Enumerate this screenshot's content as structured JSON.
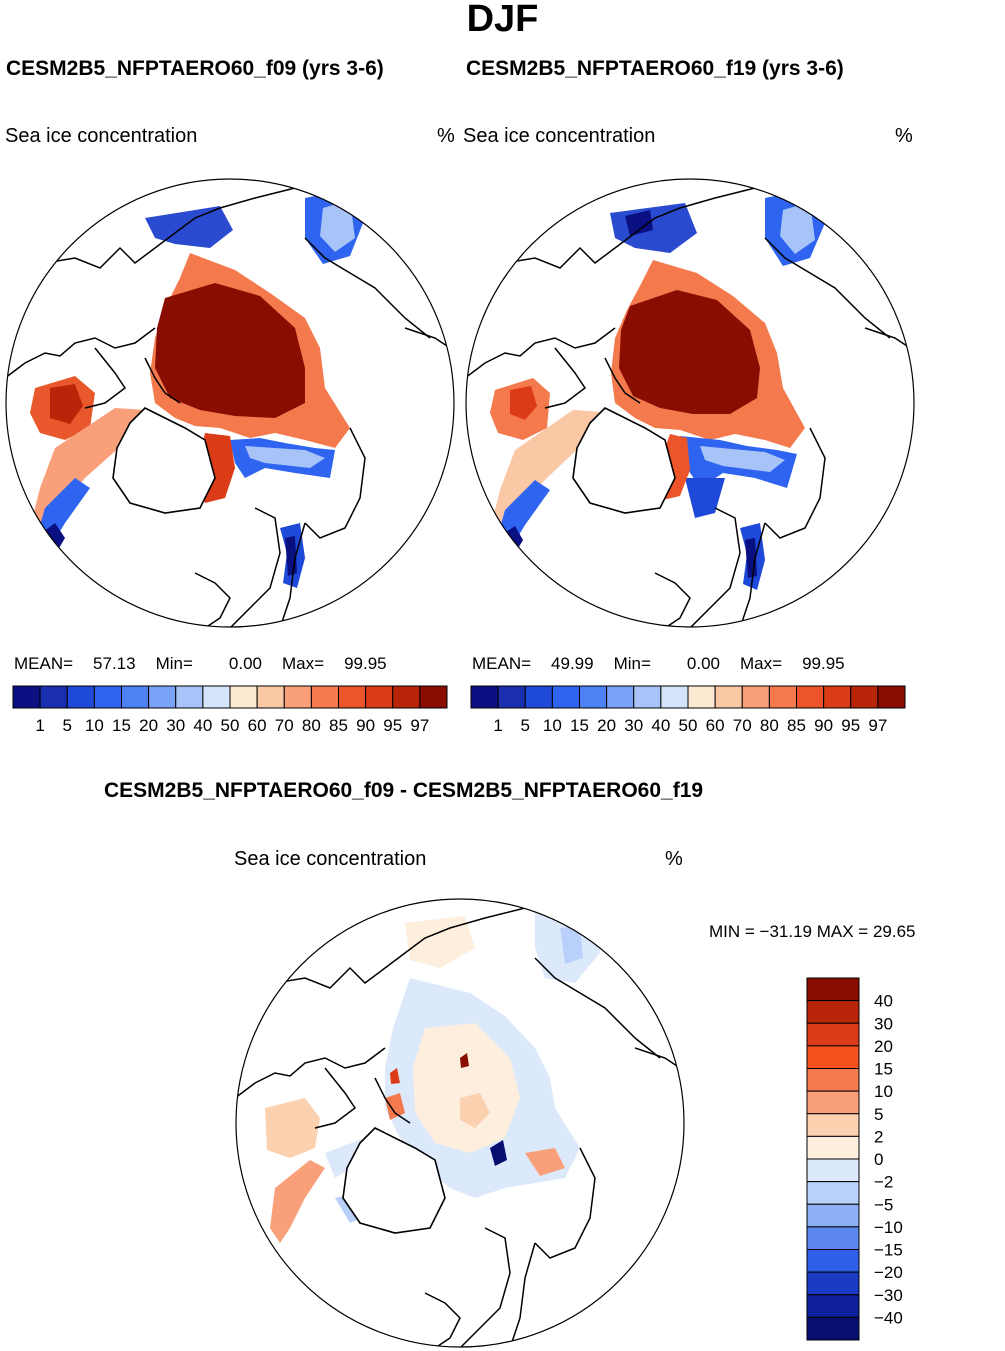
{
  "season": "DJF",
  "panels": [
    {
      "title": "CESM2B5_NFPTAERO60_f09 (yrs 3-6)",
      "variable": "Sea ice concentration",
      "units": "%",
      "stats": {
        "mean_label": "MEAN=",
        "mean": "57.13",
        "min_label": "Min=",
        "min": "0.00",
        "max_label": "Max=",
        "max": "99.95"
      }
    },
    {
      "title": "CESM2B5_NFPTAERO60_f19 (yrs 3-6)",
      "variable": "Sea ice concentration",
      "units": "%",
      "stats": {
        "mean_label": "MEAN=",
        "mean": "49.99",
        "min_label": "Min=",
        "min": "0.00",
        "max_label": "Max=",
        "max": "99.95"
      }
    }
  ],
  "colorbar": {
    "levels": [
      "1",
      "5",
      "10",
      "15",
      "20",
      "30",
      "40",
      "50",
      "60",
      "70",
      "80",
      "85",
      "90",
      "95",
      "97"
    ],
    "colors": [
      "#0a0f82",
      "#1a2fb0",
      "#1f49d8",
      "#2e64f0",
      "#4d82f5",
      "#7aa3f7",
      "#a8c3f8",
      "#d4e4fb",
      "#fde8d2",
      "#fbc8a6",
      "#f9a07a",
      "#f47a4e",
      "#ec5529",
      "#dc3b17",
      "#b82508",
      "#8a0d02"
    ]
  },
  "difference": {
    "title": "CESM2B5_NFPTAERO60_f09 - CESM2B5_NFPTAERO60_f19",
    "variable": "Sea ice concentration",
    "units": "%",
    "minmax": "MIN = −31.19  MAX =   29.65",
    "colorbar": {
      "labels": [
        "40",
        "30",
        "20",
        "15",
        "10",
        "5",
        "2",
        "0",
        "−2",
        "−5",
        "−10",
        "−15",
        "−20",
        "−30",
        "−40"
      ],
      "colors": [
        "#8a0d02",
        "#b82508",
        "#dc3b17",
        "#f4511e",
        "#f47a4e",
        "#f9a07a",
        "#fcd1b0",
        "#fdeede",
        "#dce9fb",
        "#b9d0fa",
        "#8daff5",
        "#5b87ef",
        "#2e5fe6",
        "#1a3cc4",
        "#0d1f9a",
        "#060f70"
      ]
    }
  }
}
